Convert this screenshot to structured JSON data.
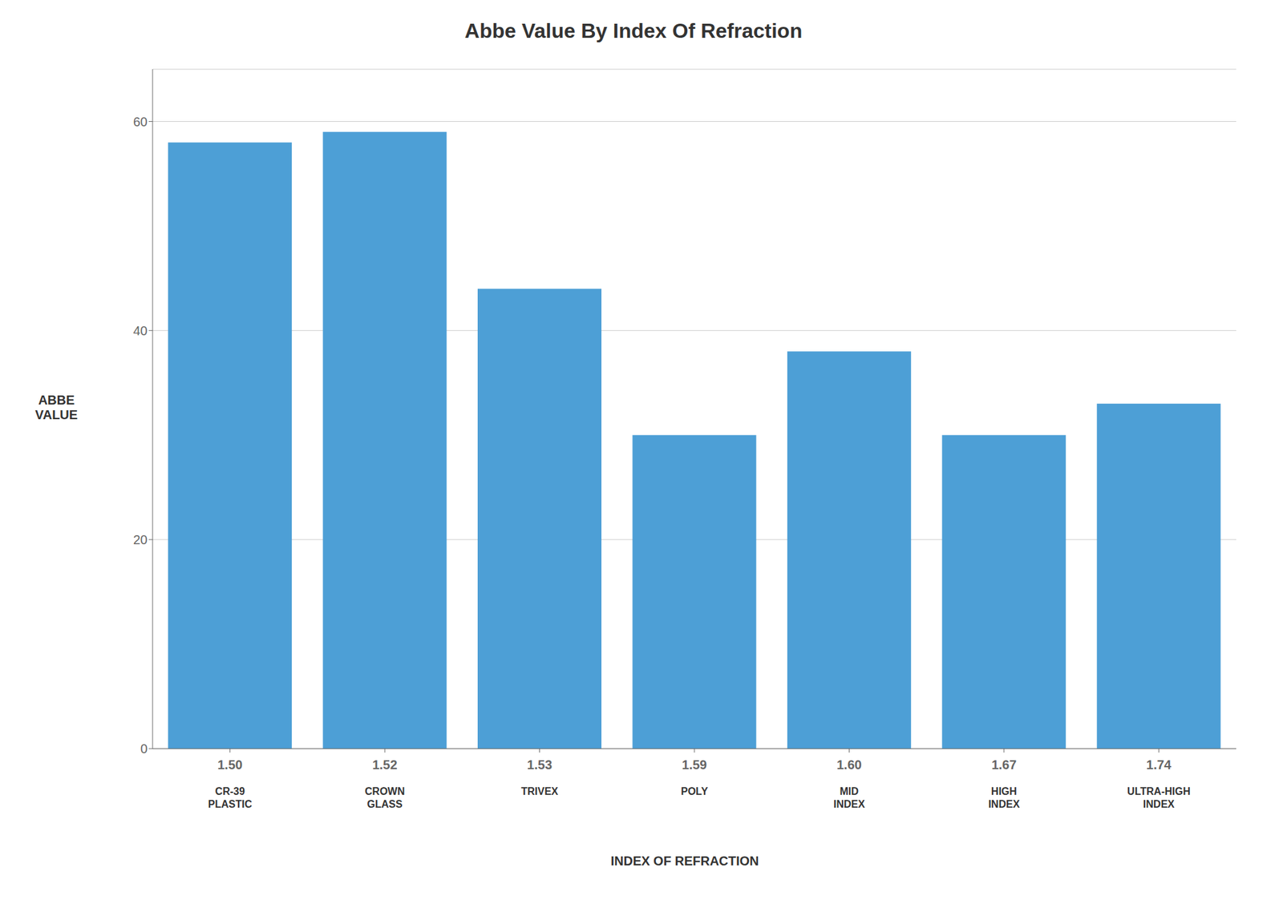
{
  "chart_data": {
    "type": "bar",
    "title": "Abbe Value By Index Of Refraction",
    "xlabel": "INDEX OF REFRACTION",
    "ylabel": "ABBE\nVALUE",
    "categories": [
      "1.50",
      "1.52",
      "1.53",
      "1.59",
      "1.60",
      "1.67",
      "1.74"
    ],
    "values": [
      58,
      59,
      44,
      30,
      38,
      30,
      33
    ],
    "color": "#4D9FD6",
    "ylim": [
      0,
      65
    ],
    "yticks": [
      0,
      20,
      40,
      60
    ],
    "grid": true,
    "annotations": [
      {
        "x": "1.50",
        "text": "CR-39\nPLASTIC"
      },
      {
        "x": "1.52",
        "text": "CROWN\nGLASS"
      },
      {
        "x": "1.53",
        "text": "TRIVEX"
      },
      {
        "x": "1.59",
        "text": "POLY"
      },
      {
        "x": "1.60",
        "text": "MID\nINDEX"
      },
      {
        "x": "1.67",
        "text": "HIGH\nINDEX"
      },
      {
        "x": "1.74",
        "text": "ULTRA-HIGH\nINDEX"
      }
    ]
  }
}
